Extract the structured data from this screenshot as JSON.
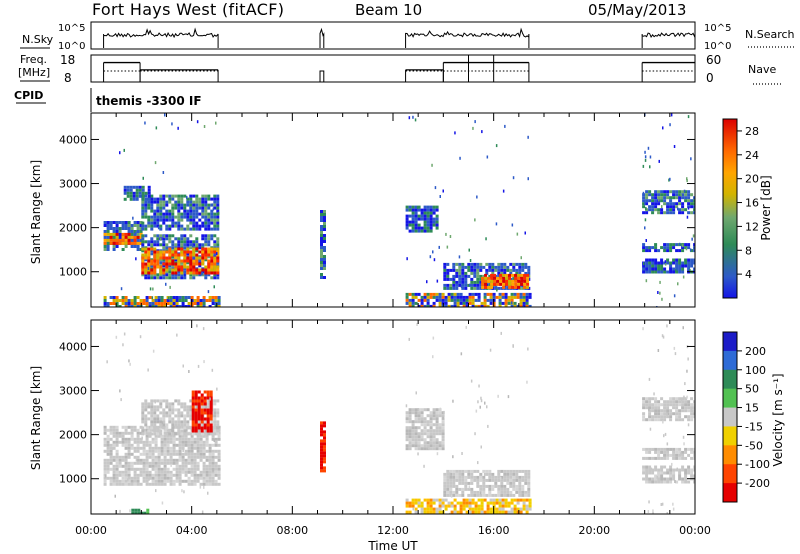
{
  "header": {
    "title": "Fort Hays West (fitACF)",
    "beam": "Beam 10",
    "date": "05/May/2013"
  },
  "cpid_panel": {
    "label": "CPID",
    "value": "themis -3300 IF"
  },
  "noise_panel": {
    "left_label": "N.Sky",
    "right_label": "N.Search",
    "left_ticks": [
      "10^5",
      "10^0"
    ],
    "right_ticks": [
      "10^5",
      "10^0"
    ],
    "segments": [
      [
        0.5,
        5.05
      ],
      [
        9.1,
        9.25
      ],
      [
        12.5,
        17.4
      ],
      [
        21.9,
        24.0
      ]
    ]
  },
  "freq_panel": {
    "left_label_1": "Freq.",
    "left_label_2": "[MHz]",
    "right_label": "Nave",
    "left_ticks": [
      "18",
      "8"
    ],
    "right_ticks": [
      "60",
      "0"
    ],
    "freq_steps": [
      {
        "t0": 0.5,
        "t1": 1.95,
        "level": 0.72
      },
      {
        "t0": 1.95,
        "t1": 5.05,
        "level": 0.45
      },
      {
        "t0": 12.5,
        "t1": 14.0,
        "level": 0.45
      },
      {
        "t0": 14.0,
        "t1": 17.4,
        "level": 0.72
      },
      {
        "t0": 21.9,
        "t1": 24.0,
        "level": 0.72
      }
    ]
  },
  "chart_data": [
    {
      "type": "heatmap",
      "name": "power",
      "xlabel": "",
      "ylabel": "Slant Range [km]",
      "xlim": [
        0,
        24
      ],
      "ylim": [
        200,
        4600
      ],
      "yticks": [
        1000,
        2000,
        3000,
        4000
      ],
      "colorbar": {
        "label": "Power [dB]",
        "ticks": [
          "4",
          "8",
          "12",
          "16",
          "20",
          "24",
          "28"
        ],
        "tick_values": [
          4,
          8,
          12,
          16,
          20,
          24,
          28
        ],
        "range": [
          0,
          30
        ],
        "colors": [
          "#1414e6",
          "#2d5ac8",
          "#2e8b57",
          "#6fa86f",
          "#d2b400",
          "#ffa500",
          "#ff6a00",
          "#ff2a00",
          "#dc0000"
        ]
      },
      "regions": [
        {
          "t0": 0.5,
          "t1": 2.0,
          "r0": 1500,
          "r1": 2150,
          "cls": "edge"
        },
        {
          "t0": 0.5,
          "t1": 2.0,
          "r0": 1620,
          "r1": 1880,
          "cls": "core"
        },
        {
          "t0": 2.0,
          "t1": 5.05,
          "r0": 850,
          "r1": 1850,
          "cls": "edge"
        },
        {
          "t0": 2.0,
          "t1": 5.05,
          "r0": 1000,
          "r1": 1550,
          "cls": "core"
        },
        {
          "t0": 2.0,
          "t1": 5.05,
          "r0": 1950,
          "r1": 2750,
          "cls": "edge"
        },
        {
          "t0": 1.3,
          "t1": 2.3,
          "r0": 2650,
          "r1": 2950,
          "cls": "weak"
        },
        {
          "t0": 0.5,
          "t1": 5.05,
          "r0": 200,
          "r1": 450,
          "cls": "ground"
        },
        {
          "t0": 9.1,
          "t1": 9.25,
          "r0": 900,
          "r1": 2400,
          "cls": "edge"
        },
        {
          "t0": 12.5,
          "t1": 13.7,
          "r0": 1900,
          "r1": 2500,
          "cls": "weak"
        },
        {
          "t0": 14.0,
          "t1": 17.4,
          "r0": 600,
          "r1": 1200,
          "cls": "edge"
        },
        {
          "t0": 15.5,
          "t1": 17.4,
          "r0": 650,
          "r1": 950,
          "cls": "core"
        },
        {
          "t0": 12.5,
          "t1": 17.4,
          "r0": 200,
          "r1": 520,
          "cls": "ground"
        },
        {
          "t0": 21.9,
          "t1": 24.0,
          "r0": 2350,
          "r1": 2850,
          "cls": "edge"
        },
        {
          "t0": 21.9,
          "t1": 24.0,
          "r0": 1500,
          "r1": 1650,
          "cls": "weak"
        },
        {
          "t0": 21.9,
          "t1": 24.0,
          "r0": 1000,
          "r1": 1300,
          "cls": "weak"
        }
      ]
    },
    {
      "type": "heatmap",
      "name": "velocity",
      "xlabel": "Time UT",
      "ylabel": "Slant Range [km]",
      "xlim": [
        0,
        24
      ],
      "ylim": [
        200,
        4600
      ],
      "yticks": [
        1000,
        2000,
        3000,
        4000
      ],
      "xticks": [
        "00:00",
        "04:00",
        "08:00",
        "12:00",
        "16:00",
        "20:00",
        "00:00"
      ],
      "colorbar": {
        "label": "Velocity [m s⁻¹]",
        "ticks": [
          "200",
          "100",
          "50",
          "15",
          "-15",
          "-50",
          "-100",
          "-200"
        ],
        "colors": [
          "#1c1cc8",
          "#2e6bd6",
          "#2e8b57",
          "#52c152",
          "#c8c8c8",
          "#f0d000",
          "#ff8c00",
          "#ff4400",
          "#e60000"
        ]
      },
      "regions": [
        {
          "t0": 0.5,
          "t1": 5.05,
          "r0": 900,
          "r1": 2200,
          "cls": "grey"
        },
        {
          "t0": 2.0,
          "t1": 5.05,
          "r0": 2000,
          "r1": 2800,
          "cls": "grey"
        },
        {
          "t0": 4.0,
          "t1": 4.8,
          "r0": 2100,
          "r1": 3000,
          "cls": "red"
        },
        {
          "t0": 1.6,
          "t1": 2.2,
          "r0": 200,
          "r1": 320,
          "cls": "green"
        },
        {
          "t0": 9.1,
          "t1": 9.25,
          "r0": 1200,
          "r1": 2300,
          "cls": "red"
        },
        {
          "t0": 12.5,
          "t1": 14.0,
          "r0": 1700,
          "r1": 2600,
          "cls": "grey"
        },
        {
          "t0": 14.0,
          "t1": 17.4,
          "r0": 650,
          "r1": 1200,
          "cls": "grey"
        },
        {
          "t0": 12.5,
          "t1": 17.4,
          "r0": 200,
          "r1": 550,
          "cls": "orange"
        },
        {
          "t0": 21.9,
          "t1": 24.0,
          "r0": 2350,
          "r1": 2850,
          "cls": "grey"
        },
        {
          "t0": 21.9,
          "t1": 24.0,
          "r0": 1450,
          "r1": 1700,
          "cls": "grey"
        },
        {
          "t0": 21.9,
          "t1": 24.0,
          "r0": 950,
          "r1": 1300,
          "cls": "grey"
        }
      ]
    }
  ]
}
